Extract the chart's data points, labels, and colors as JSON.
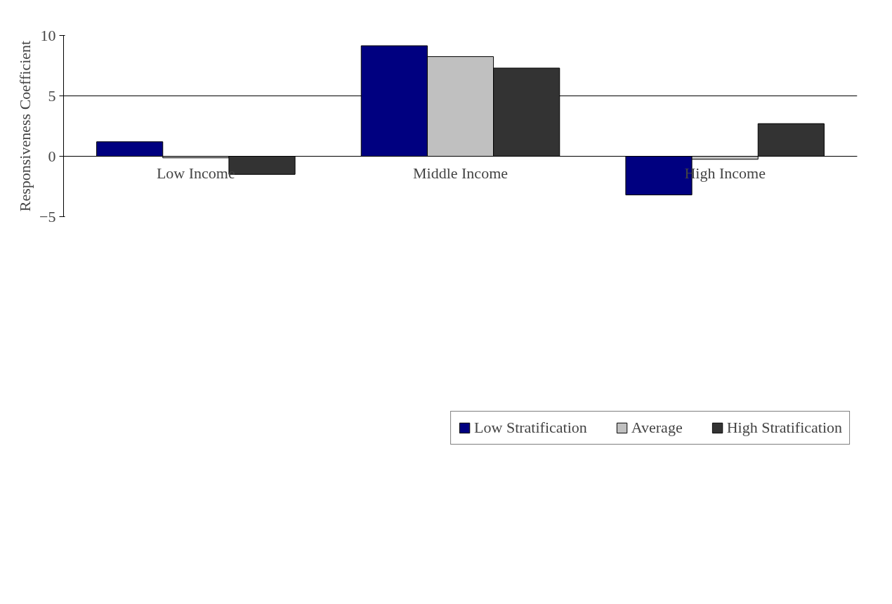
{
  "chart_data": {
    "type": "bar",
    "ylabel": "Responsiveness Coefficient",
    "categories": [
      "Low Income",
      "Middle Income",
      "High Income"
    ],
    "series": [
      {
        "name": "Low Stratification",
        "color": "#000080",
        "values": [
          1.2,
          9.15,
          -3.2
        ]
      },
      {
        "name": "Average",
        "color": "#c0c0c0",
        "values": [
          -0.13,
          8.25,
          -0.25
        ]
      },
      {
        "name": "High Stratification",
        "color": "#333333",
        "values": [
          -1.5,
          7.3,
          2.7
        ]
      }
    ],
    "ylim": [
      -5,
      10
    ],
    "yticks": [
      -5,
      0,
      5,
      10
    ],
    "grid": "y",
    "legend": "bottom"
  }
}
